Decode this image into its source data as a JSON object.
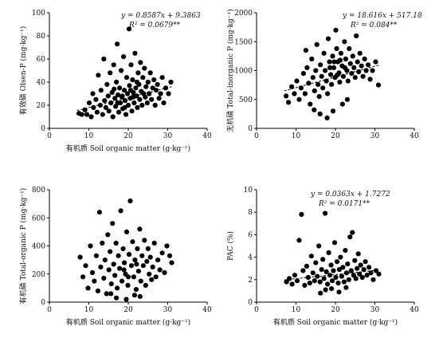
{
  "chart_data": [
    {
      "id": "olsen-p",
      "type": "scatter",
      "xlabel": "有机质 Soil organic matter (g·kg⁻¹)",
      "ylabel": "有效磷 Olsen-P (mg·kg⁻¹)",
      "xlim": [
        0,
        40
      ],
      "ylim": [
        0,
        100
      ],
      "xticks": [
        "0",
        "10",
        "20",
        "30",
        "40"
      ],
      "yticks": [
        "0",
        "20",
        "40",
        "60",
        "80",
        "100"
      ],
      "equation": "y = 0.8587x + 9.3863",
      "r2": "R² = 0.0679**",
      "trend": {
        "slope": 0.8587,
        "intercept": 9.3863,
        "x_range": [
          7,
          31
        ]
      },
      "points": [
        [
          7.5,
          13
        ],
        [
          8.2,
          12
        ],
        [
          9.0,
          16
        ],
        [
          9.5,
          12
        ],
        [
          10.1,
          22
        ],
        [
          10.6,
          10
        ],
        [
          11.0,
          30
        ],
        [
          11.2,
          18
        ],
        [
          11.8,
          25
        ],
        [
          12.1,
          14
        ],
        [
          12.4,
          46
        ],
        [
          12.9,
          20
        ],
        [
          13.1,
          33
        ],
        [
          13.5,
          12
        ],
        [
          13.8,
          60
        ],
        [
          14.0,
          24
        ],
        [
          14.3,
          18
        ],
        [
          14.6,
          38
        ],
        [
          14.9,
          28
        ],
        [
          15.1,
          15
        ],
        [
          15.4,
          48
        ],
        [
          15.6,
          22
        ],
        [
          15.9,
          31
        ],
        [
          16.1,
          10
        ],
        [
          16.3,
          55
        ],
        [
          16.6,
          26
        ],
        [
          16.8,
          19
        ],
        [
          17.0,
          40
        ],
        [
          17.2,
          73
        ],
        [
          17.4,
          29
        ],
        [
          17.6,
          14
        ],
        [
          17.8,
          35
        ],
        [
          18.0,
          22
        ],
        [
          18.2,
          50
        ],
        [
          18.4,
          27
        ],
        [
          18.6,
          17
        ],
        [
          18.8,
          62
        ],
        [
          19.0,
          33
        ],
        [
          19.2,
          24
        ],
        [
          19.4,
          12
        ],
        [
          19.6,
          44
        ],
        [
          19.8,
          30
        ],
        [
          20.0,
          20
        ],
        [
          20.2,
          86
        ],
        [
          20.3,
          37
        ],
        [
          20.5,
          26
        ],
        [
          20.7,
          55
        ],
        [
          20.9,
          15
        ],
        [
          21.1,
          42
        ],
        [
          21.3,
          31
        ],
        [
          21.5,
          22
        ],
        [
          21.7,
          65
        ],
        [
          21.9,
          35
        ],
        [
          22.1,
          28
        ],
        [
          22.3,
          18
        ],
        [
          22.5,
          48
        ],
        [
          22.7,
          38
        ],
        [
          22.9,
          25
        ],
        [
          23.1,
          57
        ],
        [
          23.3,
          32
        ],
        [
          23.5,
          20
        ],
        [
          23.7,
          44
        ],
        [
          23.9,
          30
        ],
        [
          24.1,
          52
        ],
        [
          24.3,
          27
        ],
        [
          24.5,
          36
        ],
        [
          24.8,
          22
        ],
        [
          25.0,
          40
        ],
        [
          25.3,
          30
        ],
        [
          25.6,
          48
        ],
        [
          25.9,
          25
        ],
        [
          26.2,
          35
        ],
        [
          26.5,
          42
        ],
        [
          26.8,
          20
        ],
        [
          27.1,
          33
        ],
        [
          27.4,
          38
        ],
        [
          27.8,
          26
        ],
        [
          28.2,
          30
        ],
        [
          28.6,
          44
        ],
        [
          29.0,
          22
        ],
        [
          29.5,
          35
        ],
        [
          30.2,
          30
        ],
        [
          30.8,
          40
        ],
        [
          18.5,
          28
        ],
        [
          19.1,
          18
        ],
        [
          20.6,
          33
        ],
        [
          21.2,
          27
        ],
        [
          22.2,
          40
        ],
        [
          17.3,
          22
        ],
        [
          16.4,
          34
        ]
      ]
    },
    {
      "id": "inorganic-p",
      "type": "scatter",
      "xlabel": "",
      "ylabel": "无机磷 Total-inorganic P (mg·kg⁻¹)",
      "xlim": [
        0,
        40
      ],
      "ylim": [
        0,
        2000
      ],
      "xticks": [
        "0",
        "10",
        "20",
        "30",
        "40"
      ],
      "yticks": [
        "0",
        "500",
        "1000",
        "1500",
        "2000"
      ],
      "equation": "y = 18.616x + 517.18",
      "r2": "R² = 0.084**",
      "trend": {
        "slope": 18.616,
        "intercept": 517.18,
        "x_range": [
          7,
          31
        ]
      },
      "points": [
        [
          7.5,
          560
        ],
        [
          8.1,
          450
        ],
        [
          8.9,
          720
        ],
        [
          9.6,
          600
        ],
        [
          10.2,
          820
        ],
        [
          10.8,
          500
        ],
        [
          11.3,
          700
        ],
        [
          11.9,
          950
        ],
        [
          12.3,
          600
        ],
        [
          12.8,
          1050
        ],
        [
          13.2,
          780
        ],
        [
          13.6,
          420
        ],
        [
          14.0,
          1200
        ],
        [
          14.3,
          880
        ],
        [
          14.7,
          650
        ],
        [
          15.0,
          1000
        ],
        [
          15.3,
          1450
        ],
        [
          15.6,
          760
        ],
        [
          15.9,
          550
        ],
        [
          16.2,
          1100
        ],
        [
          16.5,
          900
        ],
        [
          16.8,
          700
        ],
        [
          17.1,
          1300
        ],
        [
          17.4,
          1000
        ],
        [
          17.7,
          820
        ],
        [
          18.0,
          600
        ],
        [
          18.2,
          1550
        ],
        [
          18.5,
          1150
        ],
        [
          18.8,
          930
        ],
        [
          19.0,
          760
        ],
        [
          19.3,
          1250
        ],
        [
          19.6,
          1050
        ],
        [
          19.9,
          880
        ],
        [
          20.1,
          1700
        ],
        [
          20.3,
          1380
        ],
        [
          20.6,
          1150
        ],
        [
          20.9,
          960
        ],
        [
          21.1,
          800
        ],
        [
          21.4,
          1300
        ],
        [
          21.7,
          1080
        ],
        [
          22.0,
          900
        ],
        [
          22.3,
          1500
        ],
        [
          22.6,
          1200
        ],
        [
          22.9,
          1000
        ],
        [
          23.2,
          820
        ],
        [
          23.5,
          1380
        ],
        [
          23.8,
          1120
        ],
        [
          24.1,
          950
        ],
        [
          24.4,
          1250
        ],
        [
          24.7,
          1050
        ],
        [
          25.0,
          880
        ],
        [
          25.3,
          1600
        ],
        [
          25.6,
          1150
        ],
        [
          25.9,
          980
        ],
        [
          26.2,
          1300
        ],
        [
          26.6,
          1080
        ],
        [
          27.0,
          900
        ],
        [
          27.4,
          1200
        ],
        [
          27.8,
          1000
        ],
        [
          28.3,
          1100
        ],
        [
          28.8,
          850
        ],
        [
          29.4,
          1000
        ],
        [
          30.2,
          1150
        ],
        [
          30.9,
          750
        ],
        [
          16.1,
          250
        ],
        [
          17.9,
          180
        ],
        [
          14.6,
          320
        ],
        [
          19.4,
          300
        ],
        [
          21.8,
          420
        ],
        [
          23.0,
          500
        ],
        [
          12.5,
          1350
        ],
        [
          18.6,
          1050
        ],
        [
          20.4,
          920
        ],
        [
          21.2,
          1180
        ],
        [
          22.4,
          1050
        ],
        [
          19.7,
          1150
        ]
      ]
    },
    {
      "id": "organic-p",
      "type": "scatter",
      "xlabel": "有机质 Soil organic matter (g·kg⁻¹)",
      "ylabel": "有机磷 Total-organic P (mg·kg⁻¹)",
      "xlim": [
        0,
        40
      ],
      "ylim": [
        0,
        800
      ],
      "xticks": [
        "0",
        "10",
        "20",
        "30",
        "40"
      ],
      "yticks": [
        "0",
        "200",
        "400",
        "600",
        "800"
      ],
      "equation": "",
      "r2": "",
      "trend": null,
      "points": [
        [
          7.8,
          320
        ],
        [
          8.5,
          180
        ],
        [
          9.2,
          260
        ],
        [
          9.8,
          100
        ],
        [
          10.4,
          400
        ],
        [
          10.9,
          210
        ],
        [
          11.4,
          150
        ],
        [
          11.9,
          330
        ],
        [
          12.3,
          80
        ],
        [
          12.7,
          640
        ],
        [
          13.0,
          250
        ],
        [
          13.4,
          420
        ],
        [
          13.8,
          170
        ],
        [
          14.1,
          300
        ],
        [
          14.5,
          60
        ],
        [
          14.8,
          480
        ],
        [
          15.1,
          230
        ],
        [
          15.4,
          360
        ],
        [
          15.7,
          130
        ],
        [
          16.0,
          560
        ],
        [
          16.3,
          270
        ],
        [
          16.6,
          190
        ],
        [
          16.9,
          420
        ],
        [
          17.2,
          100
        ],
        [
          17.5,
          330
        ],
        [
          17.8,
          240
        ],
        [
          18.1,
          650
        ],
        [
          18.4,
          150
        ],
        [
          18.7,
          380
        ],
        [
          19.0,
          280
        ],
        [
          19.3,
          200
        ],
        [
          19.6,
          500
        ],
        [
          19.9,
          120
        ],
        [
          20.2,
          340
        ],
        [
          20.5,
          720
        ],
        [
          20.8,
          260
        ],
        [
          21.1,
          430
        ],
        [
          21.4,
          180
        ],
        [
          21.7,
          300
        ],
        [
          22.0,
          90
        ],
        [
          22.3,
          380
        ],
        [
          22.6,
          220
        ],
        [
          22.9,
          520
        ],
        [
          23.2,
          150
        ],
        [
          23.5,
          330
        ],
        [
          23.8,
          260
        ],
        [
          24.1,
          440
        ],
        [
          24.4,
          120
        ],
        [
          24.7,
          290
        ],
        [
          25.0,
          380
        ],
        [
          25.3,
          200
        ],
        [
          25.6,
          320
        ],
        [
          25.9,
          160
        ],
        [
          26.2,
          250
        ],
        [
          26.6,
          420
        ],
        [
          27.0,
          180
        ],
        [
          27.5,
          300
        ],
        [
          28.0,
          230
        ],
        [
          28.6,
          350
        ],
        [
          29.2,
          210
        ],
        [
          29.8,
          400
        ],
        [
          30.5,
          330
        ],
        [
          31.0,
          280
        ],
        [
          17.0,
          30
        ],
        [
          19.5,
          20
        ],
        [
          21.6,
          50
        ],
        [
          23.0,
          40
        ],
        [
          15.6,
          60
        ],
        [
          20.0,
          180
        ],
        [
          18.9,
          230
        ],
        [
          22.1,
          270
        ]
      ]
    },
    {
      "id": "pac",
      "type": "scatter",
      "xlabel": "有机质 Soil organic matter (g·kg⁻¹)",
      "ylabel": "PAC (%)",
      "xlim": [
        0,
        40
      ],
      "ylim": [
        0,
        10
      ],
      "xticks": [
        "0",
        "10",
        "20",
        "30",
        "40"
      ],
      "yticks": [
        "0",
        "2",
        "4",
        "6",
        "8",
        "10"
      ],
      "equation": "y = 0.0363x + 1.7272",
      "r2": "R² = 0.0171**",
      "trend": {
        "slope": 0.0363,
        "intercept": 1.7272,
        "x_range": [
          7,
          31
        ]
      },
      "points": [
        [
          7.6,
          1.8
        ],
        [
          8.3,
          2.1
        ],
        [
          9.0,
          1.6
        ],
        [
          9.7,
          2.4
        ],
        [
          10.3,
          1.9
        ],
        [
          10.8,
          5.5
        ],
        [
          11.4,
          7.8
        ],
        [
          11.8,
          2.8
        ],
        [
          12.2,
          1.5
        ],
        [
          12.7,
          3.2
        ],
        [
          13.1,
          2.2
        ],
        [
          13.5,
          1.7
        ],
        [
          13.9,
          4.1
        ],
        [
          14.3,
          2.6
        ],
        [
          14.7,
          1.9
        ],
        [
          15.0,
          3.5
        ],
        [
          15.4,
          2.3
        ],
        [
          15.8,
          5.0
        ],
        [
          16.1,
          1.8
        ],
        [
          16.5,
          2.9
        ],
        [
          16.8,
          3.8
        ],
        [
          17.1,
          2.1
        ],
        [
          17.4,
          7.9
        ],
        [
          17.7,
          2.7
        ],
        [
          18.0,
          1.6
        ],
        [
          18.3,
          4.4
        ],
        [
          18.6,
          2.4
        ],
        [
          18.9,
          3.3
        ],
        [
          19.2,
          1.9
        ],
        [
          19.5,
          2.8
        ],
        [
          19.8,
          5.3
        ],
        [
          20.1,
          2.2
        ],
        [
          20.4,
          3.6
        ],
        [
          20.7,
          1.7
        ],
        [
          21.0,
          2.9
        ],
        [
          21.3,
          4.0
        ],
        [
          21.6,
          2.3
        ],
        [
          21.9,
          3.1
        ],
        [
          22.2,
          1.8
        ],
        [
          22.5,
          4.6
        ],
        [
          22.8,
          2.6
        ],
        [
          23.1,
          3.4
        ],
        [
          23.4,
          2.0
        ],
        [
          23.7,
          5.8
        ],
        [
          24.0,
          2.8
        ],
        [
          24.3,
          6.2
        ],
        [
          24.6,
          2.4
        ],
        [
          24.9,
          3.7
        ],
        [
          25.2,
          2.1
        ],
        [
          25.5,
          3.0
        ],
        [
          25.8,
          4.3
        ],
        [
          26.1,
          2.5
        ],
        [
          26.4,
          3.3
        ],
        [
          26.8,
          2.2
        ],
        [
          27.2,
          2.9
        ],
        [
          27.6,
          3.6
        ],
        [
          28.0,
          2.4
        ],
        [
          28.5,
          3.1
        ],
        [
          29.0,
          2.6
        ],
        [
          29.6,
          2.0
        ],
        [
          30.3,
          2.8
        ],
        [
          31.0,
          2.5
        ],
        [
          19.0,
          1.2
        ],
        [
          20.9,
          0.9
        ],
        [
          22.7,
          1.3
        ],
        [
          17.5,
          1.1
        ],
        [
          16.2,
          0.8
        ]
      ]
    }
  ]
}
